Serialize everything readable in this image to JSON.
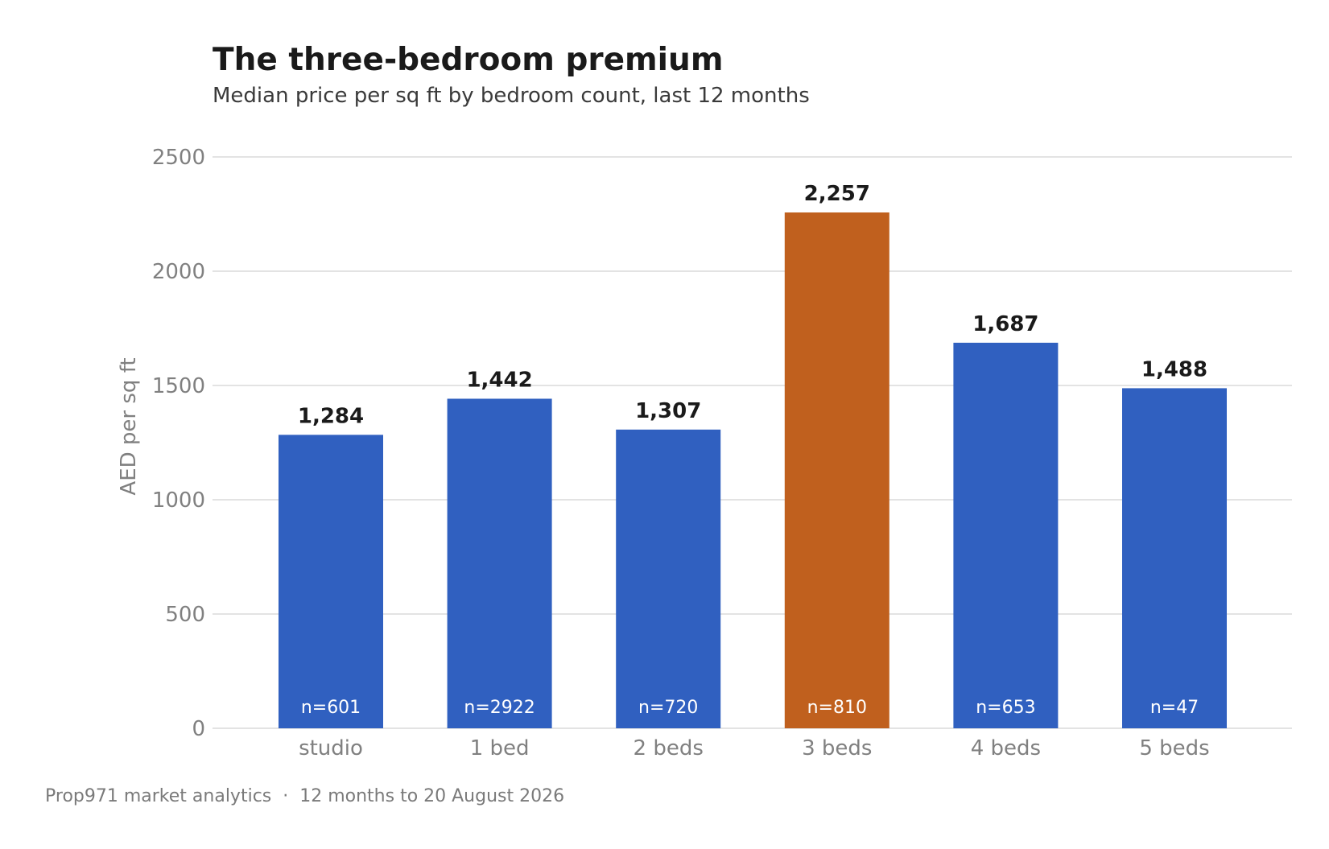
{
  "colors": {
    "bar": "#3060c0",
    "highlight": "#c0601e",
    "grid": "#e3e3e3"
  },
  "footer": "Prop971 market analytics  ·  12 months to 20 August 2026",
  "chart_data": {
    "type": "bar",
    "title": "The three-bedroom premium",
    "subtitle": "Median price per sq ft by bedroom count, last 12 months",
    "xlabel": "",
    "ylabel": "AED per sq ft",
    "ylim": [
      0,
      2500
    ],
    "yticks": [
      0,
      500,
      1000,
      1500,
      2000,
      2500
    ],
    "grid": true,
    "legend": "none",
    "categories": [
      "studio",
      "1 bed",
      "2 beds",
      "3 beds",
      "4 beds",
      "5 beds"
    ],
    "values": [
      1284,
      1442,
      1307,
      2257,
      1687,
      1488
    ],
    "value_labels": [
      "1,284",
      "1,442",
      "1,307",
      "2,257",
      "1,687",
      "1,488"
    ],
    "sample_labels": [
      "n=601",
      "n=2922",
      "n=720",
      "n=810",
      "n=653",
      "n=47"
    ],
    "highlight_category": "3 beds"
  }
}
